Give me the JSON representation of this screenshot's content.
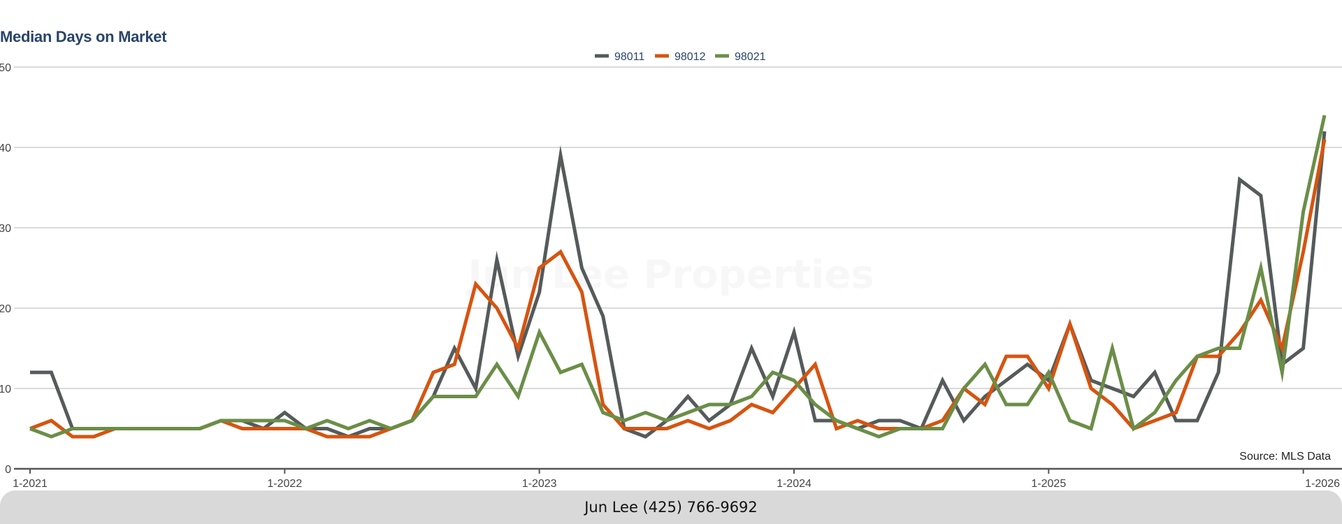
{
  "chart_data": {
    "type": "line",
    "title": "Median Days on Market",
    "xlabel": "",
    "ylabel": "",
    "ylim": [
      0,
      50
    ],
    "y_ticks": [
      0,
      10,
      20,
      30,
      40,
      50
    ],
    "x_ticks": [
      "1-2021",
      "1-2022",
      "1-2023",
      "1-2024",
      "1-2025",
      "1-2026"
    ],
    "x_start": "2021-01",
    "x_end": "2026-01",
    "grid": true,
    "legend_position": "top-center",
    "watermark": "Jun Lee Properties",
    "source": "Source: MLS Data",
    "series": [
      {
        "name": "98011",
        "color": "#555b5b",
        "values": [
          12,
          12,
          5,
          5,
          5,
          5,
          5,
          5,
          5,
          6,
          6,
          5,
          7,
          5,
          5,
          4,
          5,
          5,
          6,
          9,
          15,
          10,
          26,
          14,
          22,
          39,
          25,
          19,
          5,
          4,
          6,
          9,
          6,
          8,
          15,
          9,
          17,
          6,
          6,
          5,
          6,
          6,
          5,
          11,
          6,
          9,
          11,
          13,
          11,
          18,
          11,
          10,
          9,
          12,
          6,
          6,
          12,
          36,
          34,
          13,
          15,
          42
        ]
      },
      {
        "name": "98012",
        "color": "#d65410",
        "values": [
          5,
          6,
          4,
          4,
          5,
          5,
          5,
          5,
          5,
          6,
          5,
          5,
          5,
          5,
          4,
          4,
          4,
          5,
          6,
          12,
          13,
          23,
          20,
          15,
          25,
          27,
          22,
          8,
          5,
          5,
          5,
          6,
          5,
          6,
          8,
          7,
          10,
          13,
          5,
          6,
          5,
          5,
          5,
          6,
          10,
          8,
          14,
          14,
          10,
          18,
          10,
          8,
          5,
          6,
          7,
          14,
          14,
          17,
          21,
          15,
          27,
          41
        ]
      },
      {
        "name": "98021",
        "color": "#6a8e47",
        "values": [
          5,
          4,
          5,
          5,
          5,
          5,
          5,
          5,
          5,
          6,
          6,
          6,
          6,
          5,
          6,
          5,
          6,
          5,
          6,
          9,
          9,
          9,
          13,
          9,
          17,
          12,
          13,
          7,
          6,
          7,
          6,
          7,
          8,
          8,
          9,
          12,
          11,
          8,
          6,
          5,
          4,
          5,
          5,
          5,
          10,
          13,
          8,
          8,
          12,
          6,
          5,
          15,
          5,
          7,
          11,
          14,
          15,
          15,
          25,
          12,
          32,
          44
        ]
      }
    ]
  },
  "footer": {
    "contact": "Jun Lee (425) 766-9692"
  }
}
